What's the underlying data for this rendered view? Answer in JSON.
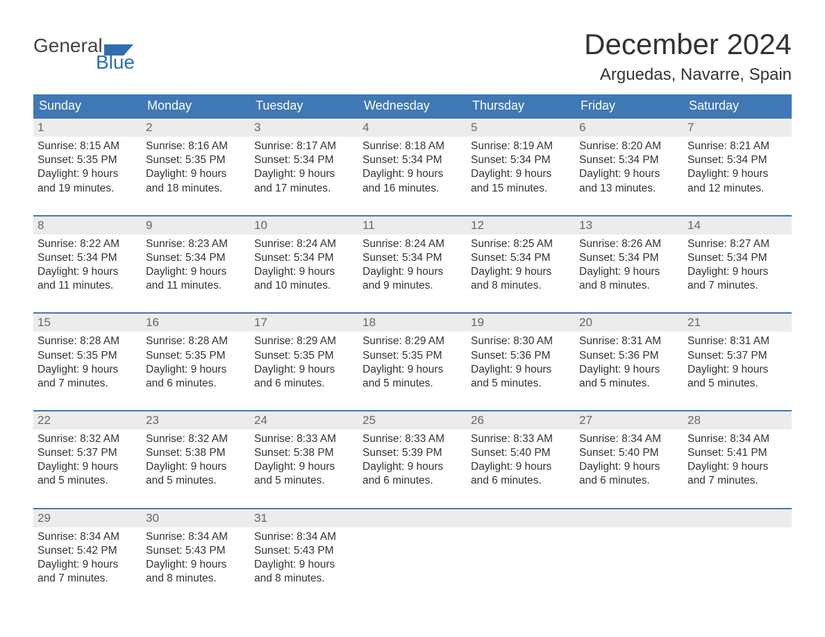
{
  "brand": {
    "word1": "General",
    "word2": "Blue",
    "word1_color": "#444444",
    "word2_color": "#2f6db1",
    "flag_color": "#2f6db1"
  },
  "title": "December 2024",
  "location": "Arguedas, Navarre, Spain",
  "colors": {
    "header_bg": "#3f78b5",
    "header_text": "#ffffff",
    "daynum_bg": "#ececec",
    "daynum_text": "#666666",
    "body_text": "#333333",
    "week_border": "#3f78b5",
    "page_bg": "#ffffff"
  },
  "typography": {
    "title_fontsize": 42,
    "location_fontsize": 24,
    "header_fontsize": 18,
    "daynum_fontsize": 17,
    "body_fontsize": 15.5,
    "logo_fontsize": 28
  },
  "day_headers": [
    "Sunday",
    "Monday",
    "Tuesday",
    "Wednesday",
    "Thursday",
    "Friday",
    "Saturday"
  ],
  "labels": {
    "sunrise": "Sunrise:",
    "sunset": "Sunset:",
    "daylight": "Daylight:"
  },
  "weeks": [
    [
      {
        "n": "1",
        "sunrise": "8:15 AM",
        "sunset": "5:35 PM",
        "daylight": "9 hours and 19 minutes."
      },
      {
        "n": "2",
        "sunrise": "8:16 AM",
        "sunset": "5:35 PM",
        "daylight": "9 hours and 18 minutes."
      },
      {
        "n": "3",
        "sunrise": "8:17 AM",
        "sunset": "5:34 PM",
        "daylight": "9 hours and 17 minutes."
      },
      {
        "n": "4",
        "sunrise": "8:18 AM",
        "sunset": "5:34 PM",
        "daylight": "9 hours and 16 minutes."
      },
      {
        "n": "5",
        "sunrise": "8:19 AM",
        "sunset": "5:34 PM",
        "daylight": "9 hours and 15 minutes."
      },
      {
        "n": "6",
        "sunrise": "8:20 AM",
        "sunset": "5:34 PM",
        "daylight": "9 hours and 13 minutes."
      },
      {
        "n": "7",
        "sunrise": "8:21 AM",
        "sunset": "5:34 PM",
        "daylight": "9 hours and 12 minutes."
      }
    ],
    [
      {
        "n": "8",
        "sunrise": "8:22 AM",
        "sunset": "5:34 PM",
        "daylight": "9 hours and 11 minutes."
      },
      {
        "n": "9",
        "sunrise": "8:23 AM",
        "sunset": "5:34 PM",
        "daylight": "9 hours and 11 minutes."
      },
      {
        "n": "10",
        "sunrise": "8:24 AM",
        "sunset": "5:34 PM",
        "daylight": "9 hours and 10 minutes."
      },
      {
        "n": "11",
        "sunrise": "8:24 AM",
        "sunset": "5:34 PM",
        "daylight": "9 hours and 9 minutes."
      },
      {
        "n": "12",
        "sunrise": "8:25 AM",
        "sunset": "5:34 PM",
        "daylight": "9 hours and 8 minutes."
      },
      {
        "n": "13",
        "sunrise": "8:26 AM",
        "sunset": "5:34 PM",
        "daylight": "9 hours and 8 minutes."
      },
      {
        "n": "14",
        "sunrise": "8:27 AM",
        "sunset": "5:34 PM",
        "daylight": "9 hours and 7 minutes."
      }
    ],
    [
      {
        "n": "15",
        "sunrise": "8:28 AM",
        "sunset": "5:35 PM",
        "daylight": "9 hours and 7 minutes."
      },
      {
        "n": "16",
        "sunrise": "8:28 AM",
        "sunset": "5:35 PM",
        "daylight": "9 hours and 6 minutes."
      },
      {
        "n": "17",
        "sunrise": "8:29 AM",
        "sunset": "5:35 PM",
        "daylight": "9 hours and 6 minutes."
      },
      {
        "n": "18",
        "sunrise": "8:29 AM",
        "sunset": "5:35 PM",
        "daylight": "9 hours and 5 minutes."
      },
      {
        "n": "19",
        "sunrise": "8:30 AM",
        "sunset": "5:36 PM",
        "daylight": "9 hours and 5 minutes."
      },
      {
        "n": "20",
        "sunrise": "8:31 AM",
        "sunset": "5:36 PM",
        "daylight": "9 hours and 5 minutes."
      },
      {
        "n": "21",
        "sunrise": "8:31 AM",
        "sunset": "5:37 PM",
        "daylight": "9 hours and 5 minutes."
      }
    ],
    [
      {
        "n": "22",
        "sunrise": "8:32 AM",
        "sunset": "5:37 PM",
        "daylight": "9 hours and 5 minutes."
      },
      {
        "n": "23",
        "sunrise": "8:32 AM",
        "sunset": "5:38 PM",
        "daylight": "9 hours and 5 minutes."
      },
      {
        "n": "24",
        "sunrise": "8:33 AM",
        "sunset": "5:38 PM",
        "daylight": "9 hours and 5 minutes."
      },
      {
        "n": "25",
        "sunrise": "8:33 AM",
        "sunset": "5:39 PM",
        "daylight": "9 hours and 6 minutes."
      },
      {
        "n": "26",
        "sunrise": "8:33 AM",
        "sunset": "5:40 PM",
        "daylight": "9 hours and 6 minutes."
      },
      {
        "n": "27",
        "sunrise": "8:34 AM",
        "sunset": "5:40 PM",
        "daylight": "9 hours and 6 minutes."
      },
      {
        "n": "28",
        "sunrise": "8:34 AM",
        "sunset": "5:41 PM",
        "daylight": "9 hours and 7 minutes."
      }
    ],
    [
      {
        "n": "29",
        "sunrise": "8:34 AM",
        "sunset": "5:42 PM",
        "daylight": "9 hours and 7 minutes."
      },
      {
        "n": "30",
        "sunrise": "8:34 AM",
        "sunset": "5:43 PM",
        "daylight": "9 hours and 8 minutes."
      },
      {
        "n": "31",
        "sunrise": "8:34 AM",
        "sunset": "5:43 PM",
        "daylight": "9 hours and 8 minutes."
      },
      {
        "empty": true
      },
      {
        "empty": true
      },
      {
        "empty": true
      },
      {
        "empty": true
      }
    ]
  ]
}
